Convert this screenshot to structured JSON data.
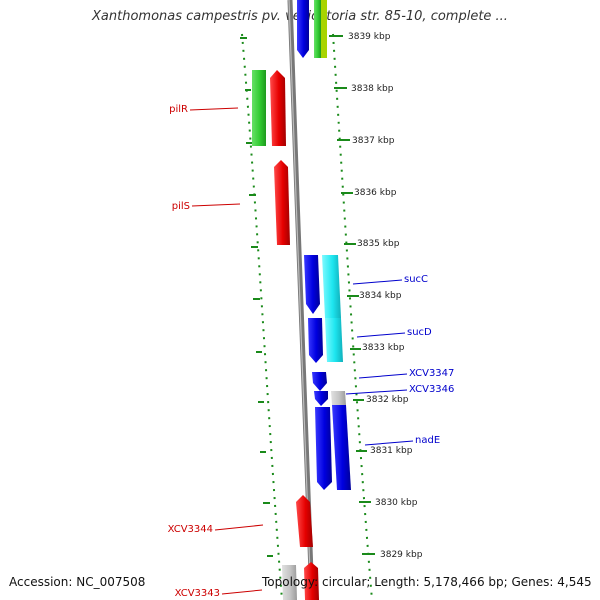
{
  "title": "Xanthomonas campestris pv. vesicatoria str. 85-10, complete ...",
  "footer": {
    "accession": "Accession: NC_007508",
    "summary": "Topology: circular; Length: 5,178,466 bp; Genes: 4,545"
  },
  "colors": {
    "ruler": "#1a8a1a",
    "backbone": "#777777",
    "forward_label": "#cc0000",
    "reverse_label": "#0000cc"
  },
  "ruler_labels": [
    "3839 kbp",
    "3838 kbp",
    "3837 kbp",
    "3836 kbp",
    "3835 kbp",
    "3834 kbp",
    "3833 kbp",
    "3832 kbp",
    "3831 kbp",
    "3830 kbp",
    "3829 kbp"
  ],
  "gene_labels": [
    {
      "name": "pilR",
      "color": "#cc0000"
    },
    {
      "name": "pilS",
      "color": "#cc0000"
    },
    {
      "name": "sucC",
      "color": "#0000cc"
    },
    {
      "name": "sucD",
      "color": "#0000cc"
    },
    {
      "name": "XCV3347",
      "color": "#0000cc"
    },
    {
      "name": "XCV3346",
      "color": "#0000cc"
    },
    {
      "name": "nadE",
      "color": "#0000cc"
    },
    {
      "name": "XCV3344",
      "color": "#cc0000"
    },
    {
      "name": "XCV3343",
      "color": "#cc0000"
    }
  ]
}
